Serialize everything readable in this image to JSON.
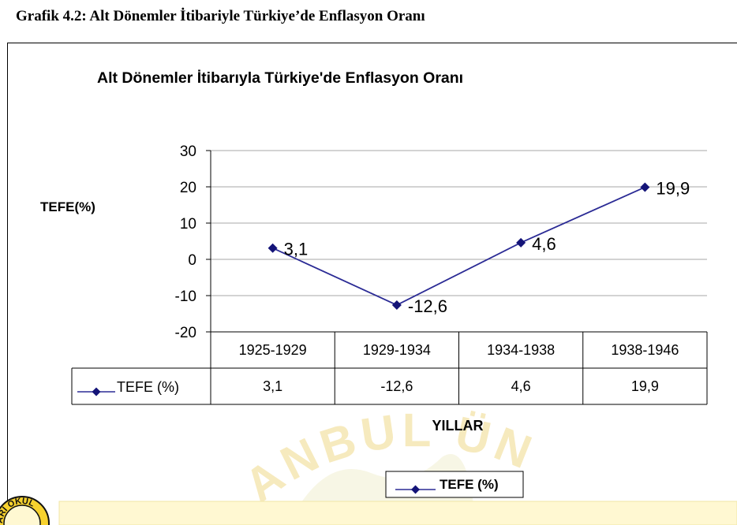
{
  "caption": "Grafik 4.2: Alt Dönemler İtibariyle Türkiye’de Enflasyon Oranı",
  "colors": {
    "series_line": "#2b2b95",
    "series_marker": "#141478",
    "watermark": "#f0d98a",
    "banner": "#fff8d2"
  },
  "chart_data": {
    "type": "line",
    "title": "Alt Dönemler İtibarıyla Türkiye'de Enflasyon Oranı",
    "xlabel": "YILLAR",
    "ylabel": "TEFE(%)",
    "categories": [
      "1925-1929",
      "1929-1934",
      "1934-1938",
      "1938-1946"
    ],
    "series": [
      {
        "name": "TEFE (%)",
        "values": [
          3.1,
          -12.6,
          4.6,
          19.9
        ],
        "labels": [
          "3,1",
          "-12,6",
          "4,6",
          "19,9"
        ]
      }
    ],
    "yticks": [
      30,
      20,
      10,
      0,
      -10,
      -20
    ],
    "ylim": [
      -20,
      30
    ],
    "grid": true,
    "data_table": true,
    "legend": "bottom",
    "legend_label": "TEFE (%)"
  },
  "watermark": {
    "text": "ANBUL ÜNİVER",
    "seal_text": "ARI OKUL"
  }
}
